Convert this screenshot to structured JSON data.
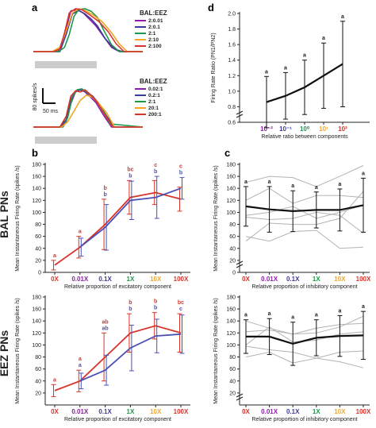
{
  "colors": {
    "red": "#d9342b",
    "blue": "#4a4fb5",
    "purple": "#8a1fa3",
    "navy": "#3a3a9e",
    "green": "#1a9a4a",
    "orange": "#f2a623",
    "gray": "#b3b3b3",
    "stim": "#cccccc"
  },
  "panel_a": {
    "label": "a",
    "top_legend": {
      "title": "BAL:EEZ",
      "items": [
        "2:0.01",
        "2:0.1",
        "2:1",
        "2:10",
        "2:100"
      ]
    },
    "bottom_legend": {
      "title": "BAL:EEZ",
      "items": [
        "0.02:1",
        "0.2:1",
        "2:1",
        "20:1",
        "200:1"
      ]
    },
    "scale_y": "80 spikes/s",
    "scale_x": "50 ms"
  },
  "panel_b": {
    "label": "b",
    "row_bal": "BAL PNs",
    "row_eez": "EEZ PNs"
  },
  "panel_c": {
    "label": "c"
  },
  "panel_d": {
    "label": "d"
  },
  "chart_data": [
    {
      "id": "a_top",
      "type": "line",
      "series": [
        {
          "name": "2:0.01",
          "color": "purple",
          "x": [
            0,
            20,
            32,
            40,
            48,
            56,
            64,
            72,
            80,
            90,
            100,
            110,
            140
          ],
          "y": [
            0,
            0,
            0,
            40,
            95,
            98,
            90,
            75,
            60,
            35,
            10,
            0,
            0
          ]
        },
        {
          "name": "2:0.1",
          "color": "navy",
          "x": [
            0,
            20,
            34,
            42,
            50,
            58,
            66,
            74,
            82,
            92,
            104,
            114,
            140
          ],
          "y": [
            0,
            0,
            0,
            40,
            88,
            96,
            88,
            76,
            60,
            30,
            6,
            0,
            0
          ]
        },
        {
          "name": "2:1",
          "color": "green",
          "x": [
            0,
            32,
            40,
            46,
            52,
            58,
            66,
            74,
            82,
            90,
            100,
            110,
            140
          ],
          "y": [
            0,
            0,
            10,
            40,
            82,
            98,
            100,
            94,
            80,
            50,
            16,
            0,
            0
          ]
        },
        {
          "name": "2:10",
          "color": "orange",
          "x": [
            0,
            24,
            34,
            42,
            50,
            58,
            66,
            76,
            88,
            100,
            110,
            120,
            140
          ],
          "y": [
            0,
            0,
            10,
            48,
            90,
            100,
            96,
            86,
            70,
            44,
            18,
            0,
            0
          ]
        },
        {
          "name": "2:100",
          "color": "red",
          "x": [
            0,
            26,
            34,
            40,
            46,
            54,
            62,
            72,
            84,
            96,
            106,
            116,
            140
          ],
          "y": [
            0,
            0,
            6,
            44,
            90,
            100,
            98,
            86,
            70,
            46,
            18,
            0,
            0
          ]
        }
      ]
    },
    {
      "id": "a_bottom",
      "type": "line",
      "series": [
        {
          "name": "0.02:1",
          "color": "purple",
          "x": [
            0,
            34,
            42,
            48,
            54,
            60,
            66,
            72,
            80,
            90,
            100,
            140
          ],
          "y": [
            0,
            0,
            10,
            44,
            66,
            70,
            66,
            58,
            46,
            22,
            0,
            0
          ]
        },
        {
          "name": "0.2:1",
          "color": "navy",
          "x": [
            0,
            34,
            42,
            48,
            54,
            60,
            68,
            76,
            84,
            94,
            104,
            140
          ],
          "y": [
            0,
            0,
            14,
            52,
            68,
            70,
            66,
            58,
            44,
            20,
            0,
            0
          ]
        },
        {
          "name": "2:1",
          "color": "green",
          "x": [
            0,
            38,
            44,
            50,
            56,
            62,
            70,
            78,
            88,
            98,
            140
          ],
          "y": [
            0,
            0,
            18,
            56,
            70,
            72,
            64,
            54,
            36,
            6,
            0
          ]
        },
        {
          "name": "20:1",
          "color": "orange",
          "x": [
            0,
            36,
            44,
            52,
            60,
            68,
            76,
            84,
            94,
            104,
            140
          ],
          "y": [
            0,
            0,
            10,
            30,
            50,
            60,
            56,
            44,
            26,
            0,
            0
          ]
        },
        {
          "name": "200:1",
          "color": "red",
          "x": [
            0,
            34,
            42,
            48,
            54,
            60,
            66,
            74,
            82,
            92,
            102,
            140
          ],
          "y": [
            0,
            0,
            20,
            58,
            68,
            66,
            70,
            60,
            46,
            22,
            0,
            0
          ]
        }
      ]
    },
    {
      "id": "b_bal",
      "type": "line",
      "categories": [
        "0X",
        "0.01X",
        "0.1X",
        "1X",
        "10X",
        "100X"
      ],
      "cat_colors": [
        "red",
        "purple",
        "navy",
        "green",
        "orange",
        "red"
      ],
      "ylabel": "Mean Instantaneous Firing Rate (spikes /s)",
      "xlabel": "Relative proportion of excitatory component",
      "ylim": [
        0,
        180
      ],
      "yticks": [
        0,
        20,
        40,
        60,
        80,
        100,
        120,
        140,
        160,
        180
      ],
      "series": [
        {
          "color": "red",
          "values": [
            12,
            42,
            80,
            125,
            133,
            122
          ],
          "err": [
            8,
            18,
            42,
            28,
            20,
            20
          ]
        },
        {
          "color": "blue",
          "values": [
            null,
            42,
            75,
            120,
            125,
            140
          ],
          "err": [
            null,
            15,
            38,
            32,
            35,
            18
          ]
        }
      ],
      "sig": [
        [
          {
            "text": "a",
            "color": "red"
          }
        ],
        [
          {
            "text": "a",
            "color": "red"
          }
        ],
        [
          {
            "text": "b",
            "color": "red"
          },
          {
            "text": "b",
            "color": "blue"
          }
        ],
        [
          {
            "text": "bc",
            "color": "red"
          },
          {
            "text": "b",
            "color": "blue"
          }
        ],
        [
          {
            "text": "c",
            "color": "red"
          },
          {
            "text": "b",
            "color": "blue"
          }
        ],
        [
          {
            "text": "c",
            "color": "red"
          },
          {
            "text": "b",
            "color": "blue"
          }
        ]
      ]
    },
    {
      "id": "b_eez",
      "type": "line",
      "categories": [
        "0X",
        "0.01X",
        "0.1X",
        "1X",
        "10X",
        "100X"
      ],
      "cat_colors": [
        "red",
        "purple",
        "navy",
        "green",
        "orange",
        "red"
      ],
      "ylabel": "Mean Instantaneous Firing Rate (spikes /s)",
      "xlabel": "Relative proportion of excitatory component",
      "ylim": [
        0,
        180
      ],
      "yticks": [
        20,
        40,
        60,
        80,
        100,
        120,
        140,
        160,
        180
      ],
      "series": [
        {
          "color": "red",
          "values": [
            24,
            40,
            80,
            120,
            132,
            120
          ],
          "err": [
            10,
            18,
            40,
            32,
            22,
            32
          ]
        },
        {
          "color": "blue",
          "values": [
            null,
            40,
            58,
            95,
            115,
            118
          ],
          "err": [
            null,
            13,
            25,
            38,
            28,
            32
          ]
        }
      ],
      "sig": [
        [
          {
            "text": "a",
            "color": "red"
          }
        ],
        [
          {
            "text": "a",
            "color": "red"
          },
          {
            "text": "a",
            "color": "blue"
          }
        ],
        [
          {
            "text": "ab",
            "color": "red"
          },
          {
            "text": "ab",
            "color": "blue"
          }
        ],
        [
          {
            "text": "b",
            "color": "red"
          },
          {
            "text": "b",
            "color": "blue"
          }
        ],
        [
          {
            "text": "b",
            "color": "red"
          },
          {
            "text": "b",
            "color": "blue"
          }
        ],
        [
          {
            "text": "bc",
            "color": "red"
          },
          {
            "text": "c",
            "color": "blue"
          }
        ]
      ]
    },
    {
      "id": "c_top",
      "type": "line",
      "categories": [
        "0X",
        "0.01X",
        "0.1X",
        "1X",
        "10X",
        "100X"
      ],
      "cat_colors": [
        "red",
        "purple",
        "navy",
        "green",
        "orange",
        "red"
      ],
      "ylabel": "Mean Instantaneous Firing Rate (spikes /s)",
      "xlabel": "Relative proportion of inhibitory component",
      "ylim": [
        0,
        180
      ],
      "yticks": [
        0,
        20,
        40,
        60,
        80,
        100,
        120,
        140,
        160,
        180
      ],
      "mean": [
        110,
        105,
        102,
        104,
        104,
        112
      ],
      "err": [
        33,
        38,
        34,
        30,
        35,
        45
      ],
      "individual": [
        [
          150,
          160,
          158,
          143,
          160,
          178
        ],
        [
          92,
          88,
          90,
          100,
          95,
          65
        ],
        [
          52,
          82,
          80,
          80,
          90,
          135
        ],
        [
          120,
          140,
          115,
          128,
          128,
          125
        ],
        [
          60,
          52,
          68,
          70,
          40,
          42
        ],
        [
          95,
          100,
          110,
          90,
          100,
          112
        ]
      ],
      "sig": [
        "a",
        "a",
        "a",
        "a",
        "a",
        "a"
      ]
    },
    {
      "id": "c_bottom",
      "type": "line",
      "categories": [
        "0X",
        "0.01X",
        "0.1X",
        "1X",
        "10X",
        "100X"
      ],
      "cat_colors": [
        "red",
        "purple",
        "navy",
        "green",
        "orange",
        "red"
      ],
      "ylabel": "Mean Instantaneous Firing Rate (spikes /s)",
      "xlabel": "Relative proportion of inhibitory component",
      "ylim": [
        0,
        180
      ],
      "yticks": [
        20,
        40,
        60,
        80,
        100,
        120,
        140,
        160,
        180
      ],
      "mean": [
        114,
        114,
        102,
        112,
        115,
        116
      ],
      "err": [
        28,
        30,
        36,
        30,
        34,
        40
      ],
      "individual": [
        [
          140,
          128,
          118,
          120,
          130,
          148
        ],
        [
          98,
          92,
          88,
          78,
          88,
          90
        ],
        [
          80,
          88,
          70,
          78,
          72,
          62
        ],
        [
          122,
          125,
          118,
          128,
          134,
          136
        ],
        [
          100,
          130,
          105,
          108,
          118,
          122
        ]
      ],
      "sig": [
        "a",
        "a",
        "a",
        "a",
        "a",
        "a"
      ]
    },
    {
      "id": "d",
      "type": "line",
      "ylabel": "Firing Rate Ratio (PN1/PN2)",
      "xlabel": "Relative ratio between components",
      "ylim": [
        0.6,
        2.0
      ],
      "yticks": [
        0.6,
        0.8,
        1.0,
        1.2,
        1.4,
        1.6,
        1.8,
        2.0
      ],
      "categories": [
        "10⁻²",
        "10⁻¹",
        "10⁰",
        "10¹",
        "10²"
      ],
      "cat_colors": [
        "purple",
        "navy",
        "green",
        "orange",
        "red"
      ],
      "values": [
        0.86,
        0.94,
        1.05,
        1.2,
        1.35
      ],
      "err": [
        0.33,
        0.3,
        0.35,
        0.42,
        0.55
      ],
      "sig": [
        "a",
        "a",
        "a",
        "a",
        "a"
      ]
    }
  ]
}
